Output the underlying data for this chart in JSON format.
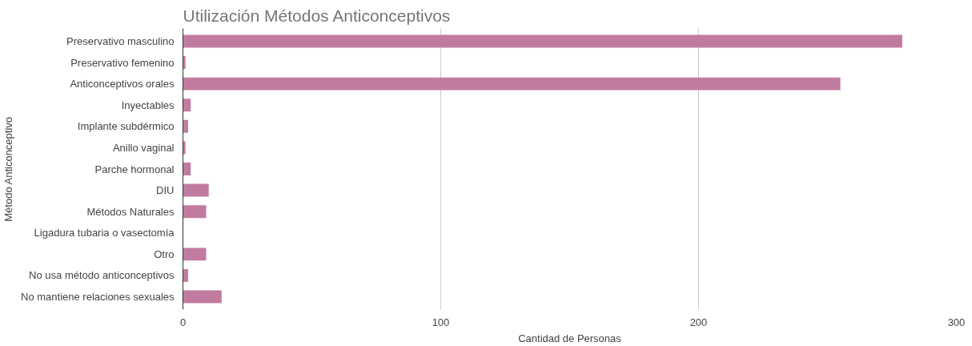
{
  "chart_data": {
    "type": "bar",
    "orientation": "horizontal",
    "title": "Utilización Métodos Anticonceptivos",
    "xlabel": "Cantidad de Personas",
    "ylabel": "Método Anticonceptivo",
    "categories": [
      "Preservativo masculino",
      "Preservativo femenino",
      "Anticonceptivos orales",
      "Inyectables",
      "Implante subdérmico",
      "Anillo vaginal",
      "Parche hormonal",
      "DIU",
      "Métodos Naturales",
      "Ligadura tubaria o vasectomía",
      "Otro",
      "No usa método anticonceptivos",
      "No mantiene relaciones sexuales"
    ],
    "series": [
      {
        "color": "#c27ba0",
        "values": [
          279,
          1,
          255,
          3,
          2,
          1,
          3,
          10,
          9,
          0,
          9,
          2,
          15
        ]
      }
    ],
    "xlim": [
      0,
      300
    ],
    "xticks": [
      0,
      100,
      200,
      300
    ],
    "grid": "x"
  }
}
